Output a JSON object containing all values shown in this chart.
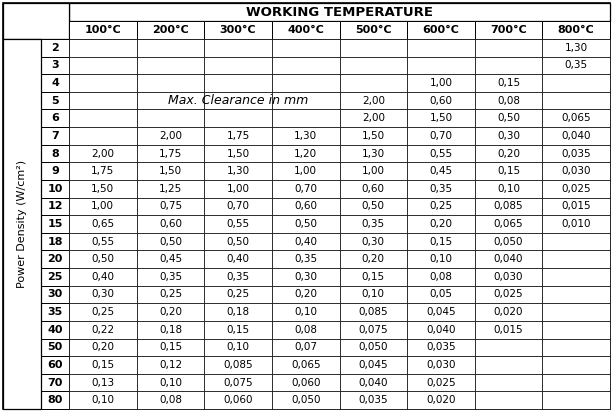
{
  "title": "WORKING TEMPERATURE",
  "col_headers": [
    "100°C",
    "200°C",
    "300°C",
    "400°C",
    "500°C",
    "600°C",
    "700°C",
    "800°C"
  ],
  "row_header_label": "Power Density (W/cm²)",
  "row_headers": [
    "2",
    "3",
    "4",
    "5",
    "6",
    "7",
    "8",
    "9",
    "10",
    "12",
    "15",
    "18",
    "20",
    "25",
    "30",
    "35",
    "40",
    "50",
    "60",
    "70",
    "80"
  ],
  "max_clearance_label": "Max. Clearance in mm",
  "table_data": [
    [
      "",
      "",
      "",
      "",
      "",
      "",
      "",
      "1,30"
    ],
    [
      "",
      "",
      "",
      "",
      "",
      "",
      "",
      "0,35"
    ],
    [
      "",
      "",
      "",
      "",
      "",
      "1,00",
      "0,15",
      ""
    ],
    [
      "",
      "",
      "",
      "",
      "2,00",
      "0,60",
      "0,08",
      ""
    ],
    [
      "",
      "",
      "",
      "",
      "2,00",
      "1,50",
      "0,50",
      "0,065"
    ],
    [
      "",
      "2,00",
      "1,75",
      "1,30",
      "1,50",
      "0,70",
      "0,30",
      "0,040"
    ],
    [
      "2,00",
      "1,75",
      "1,50",
      "1,20",
      "1,30",
      "0,55",
      "0,20",
      "0,035"
    ],
    [
      "1,75",
      "1,50",
      "1,30",
      "1,00",
      "1,00",
      "0,45",
      "0,15",
      "0,030"
    ],
    [
      "1,50",
      "1,25",
      "1,00",
      "0,70",
      "0,60",
      "0,35",
      "0,10",
      "0,025"
    ],
    [
      "1,00",
      "0,75",
      "0,70",
      "0,60",
      "0,50",
      "0,25",
      "0,085",
      "0,015"
    ],
    [
      "0,65",
      "0,60",
      "0,55",
      "0,50",
      "0,35",
      "0,20",
      "0,065",
      "0,010"
    ],
    [
      "0,55",
      "0,50",
      "0,50",
      "0,40",
      "0,30",
      "0,15",
      "0,050",
      ""
    ],
    [
      "0,50",
      "0,45",
      "0,40",
      "0,35",
      "0,20",
      "0,10",
      "0,040",
      ""
    ],
    [
      "0,40",
      "0,35",
      "0,35",
      "0,30",
      "0,15",
      "0,08",
      "0,030",
      ""
    ],
    [
      "0,30",
      "0,25",
      "0,25",
      "0,20",
      "0,10",
      "0,05",
      "0,025",
      ""
    ],
    [
      "0,25",
      "0,20",
      "0,18",
      "0,10",
      "0,085",
      "0,045",
      "0,020",
      ""
    ],
    [
      "0,22",
      "0,18",
      "0,15",
      "0,08",
      "0,075",
      "0,040",
      "0,015",
      ""
    ],
    [
      "0,20",
      "0,15",
      "0,10",
      "0,07",
      "0,050",
      "0,035",
      "",
      ""
    ],
    [
      "0,15",
      "0,12",
      "0,085",
      "0,065",
      "0,045",
      "0,030",
      "",
      ""
    ],
    [
      "0,13",
      "0,10",
      "0,075",
      "0,060",
      "0,040",
      "0,025",
      "",
      ""
    ],
    [
      "0,10",
      "0,08",
      "0,060",
      "0,050",
      "0,035",
      "0,020",
      "",
      ""
    ]
  ],
  "figsize": [
    6.13,
    4.12
  ],
  "dpi": 100
}
